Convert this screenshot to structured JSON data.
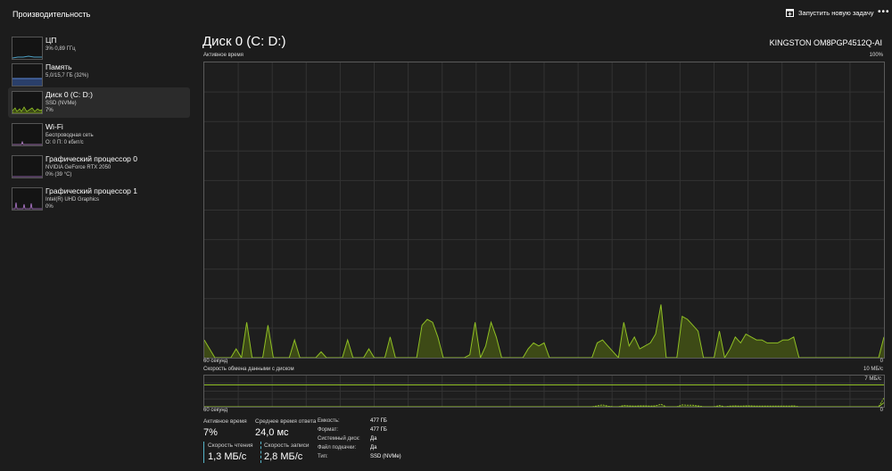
{
  "header": {
    "title": "Производительность",
    "run_task_label": "Запустить новую задачу",
    "more_label": "•••"
  },
  "sidebar": {
    "items": [
      {
        "title": "ЦП",
        "lines": [
          "3% 0,89 ГГц"
        ]
      },
      {
        "title": "Память",
        "lines": [
          "5,0/15,7 ГБ (32%)"
        ]
      },
      {
        "title": "Диск 0 (C: D:)",
        "lines": [
          "SSD (NVMe)",
          "7%"
        ]
      },
      {
        "title": "Wi-Fi",
        "lines": [
          "Беспроводная сеть",
          "О: 0 П: 0 кбит/с"
        ]
      },
      {
        "title": "Графический процессор 0",
        "lines": [
          "NVIDIA GeForce RTX 2050",
          "0% (39 °C)"
        ]
      },
      {
        "title": "Графический процессор 1",
        "lines": [
          "Intel(R) UHD Graphics",
          "0%"
        ]
      }
    ]
  },
  "main": {
    "title": "Диск 0 (C: D:)",
    "model": "KINGSTON OM8PGP4512Q-AI",
    "chart1": {
      "label": "Активное время",
      "max_label": "100%",
      "time_label": "60 секунд",
      "min_label": "0"
    },
    "chart2": {
      "label": "Скорость обмена данными с диском",
      "max_label": "10 МБ/с",
      "line_label": "7 МБ/с",
      "time_label": "60 секунд",
      "min_label": "0"
    },
    "stats": {
      "active_time_label": "Активное время",
      "active_time": "7%",
      "avg_response_label": "Среднее время ответа",
      "avg_response": "24,0 мс",
      "read_speed_label": "Скорость чтения",
      "read_speed": "1,3 МБ/с",
      "write_speed_label": "Скорость записи",
      "write_speed": "2,8 МБ/с"
    },
    "props": [
      {
        "key": "Емкость:",
        "value": "477 ГБ"
      },
      {
        "key": "Формат:",
        "value": "477 ГБ"
      },
      {
        "key": "Системный диск:",
        "value": "Да"
      },
      {
        "key": "Файл подкачки:",
        "value": "Да"
      },
      {
        "key": "Тип:",
        "value": "SSD (NVMe)"
      }
    ]
  },
  "colors": {
    "accent": "#8fbf24",
    "fill": "#3d4a16",
    "read": "#56b5c9"
  },
  "chart_data": [
    {
      "type": "area",
      "title": "Активное время",
      "ylim": [
        0,
        100
      ],
      "x_span_label": "60 секунд",
      "values": [
        6,
        3,
        0,
        0,
        0,
        0,
        3,
        0,
        12,
        0,
        0,
        0,
        11,
        0,
        0,
        0,
        0,
        6,
        0,
        0,
        0,
        0,
        2,
        0,
        0,
        0,
        0,
        6,
        0,
        0,
        0,
        3,
        0,
        0,
        0,
        7,
        0,
        0,
        0,
        0,
        0,
        11,
        13,
        12,
        7,
        0,
        0,
        0,
        0,
        0,
        1,
        12,
        0,
        4,
        12,
        7,
        0,
        0,
        0,
        0,
        0,
        3,
        5,
        4,
        5,
        0,
        0,
        0,
        0,
        0,
        0,
        0,
        0,
        0,
        5,
        6,
        4,
        2,
        0,
        12,
        4,
        7,
        3,
        4,
        5,
        8,
        18,
        0,
        0,
        0,
        14,
        13,
        11,
        9,
        0,
        0,
        0,
        9,
        0,
        3,
        7,
        5,
        8,
        7,
        6,
        6,
        5,
        5,
        5,
        6,
        6,
        7,
        0,
        0,
        0,
        0,
        0,
        0,
        0,
        0,
        0,
        0,
        0,
        0,
        0,
        0,
        0,
        0,
        7
      ],
      "grid": true
    },
    {
      "type": "line",
      "title": "Скорость обмена данными с диском",
      "ylim": [
        0,
        10
      ],
      "reference_line": 7,
      "series": [],
      "read_values": [
        0,
        0,
        0,
        0,
        0,
        0,
        0,
        0,
        0,
        0,
        0,
        0,
        0,
        0,
        0,
        0,
        0,
        0,
        0,
        0,
        0,
        0,
        0,
        0,
        0,
        0,
        0,
        0,
        0,
        0,
        0,
        0,
        0,
        0,
        0,
        0,
        0,
        0,
        0,
        0,
        0,
        0,
        0,
        0,
        0,
        0,
        0,
        0,
        0,
        0,
        0,
        0,
        0,
        0,
        0,
        0,
        0,
        0,
        0,
        0,
        0,
        0,
        0,
        0,
        0,
        0,
        0,
        0,
        0,
        0,
        0,
        0,
        0,
        0,
        0,
        0,
        0,
        0,
        0,
        0,
        0,
        0,
        0,
        0,
        0,
        0,
        0,
        0,
        0,
        0,
        0,
        0,
        0,
        0,
        0,
        0,
        0,
        0,
        0,
        0,
        0,
        0,
        0,
        0,
        0,
        0,
        0,
        0,
        0,
        0,
        0,
        0,
        0,
        0,
        0,
        0,
        0,
        0,
        0,
        0,
        0,
        0,
        0,
        0,
        0,
        0,
        0,
        0,
        1.3
      ],
      "write_values": [
        0,
        0,
        0,
        0,
        0,
        0,
        0,
        0,
        0,
        0,
        0,
        0,
        0,
        0,
        0,
        0,
        0,
        0,
        0,
        0,
        0,
        0,
        0,
        0,
        0,
        0,
        0,
        0,
        0,
        0,
        0,
        0,
        0,
        0,
        0,
        0,
        0,
        0,
        0,
        0,
        0,
        0,
        0,
        0,
        0,
        0,
        0,
        0,
        0,
        0,
        0,
        0,
        0,
        0,
        0,
        0,
        0,
        0,
        0,
        0,
        0,
        0,
        0,
        0,
        0,
        0,
        0,
        0,
        0,
        0,
        0,
        0,
        0,
        0,
        0.3,
        0.6,
        0.2,
        0,
        0,
        0.4,
        0.3,
        0.2,
        0.3,
        0.3,
        0.2,
        0.3,
        0.8,
        0,
        0,
        0,
        0.6,
        0.5,
        0.5,
        0.3,
        0,
        0,
        0,
        0.4,
        0,
        0.2,
        0.3,
        0.2,
        0.3,
        0.3,
        0.2,
        0.2,
        0.2,
        0.2,
        0.2,
        0.2,
        0.2,
        0.3,
        0,
        0,
        0,
        0,
        0,
        0,
        0,
        0,
        0,
        0,
        0,
        0,
        0,
        0,
        0,
        0,
        2.8
      ],
      "grid": true
    }
  ]
}
